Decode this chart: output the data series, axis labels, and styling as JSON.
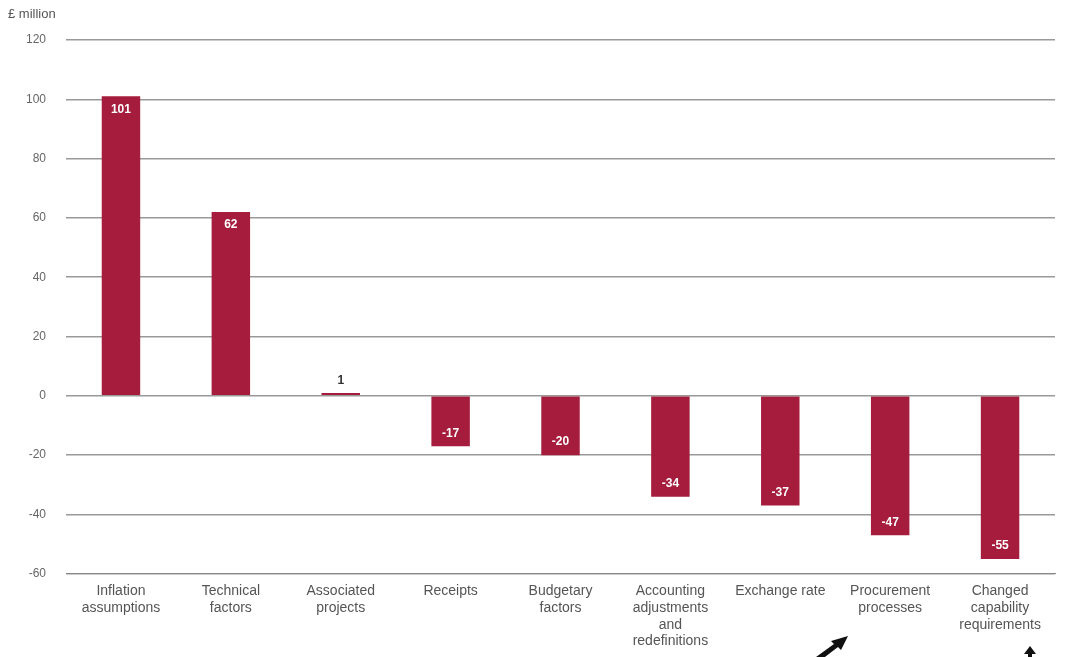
{
  "chart_data": {
    "type": "bar",
    "ylabel": "£ million",
    "categories": [
      "Inflation assumptions",
      "Technical factors",
      "Associated projects",
      "Receipts",
      "Budgetary factors",
      "Accounting adjustments and redefinitions",
      "Exchange rate",
      "Procurement processes",
      "Changed capability requirements"
    ],
    "values": [
      101,
      62,
      1,
      -17,
      -20,
      -34,
      -37,
      -47,
      -55
    ],
    "color": "#a51c3c",
    "ylim": [
      -60,
      120
    ],
    "yticks": [
      -60,
      -40,
      -20,
      0,
      20,
      40,
      60,
      80,
      100,
      120
    ],
    "grid": "y",
    "data_labels": true
  }
}
